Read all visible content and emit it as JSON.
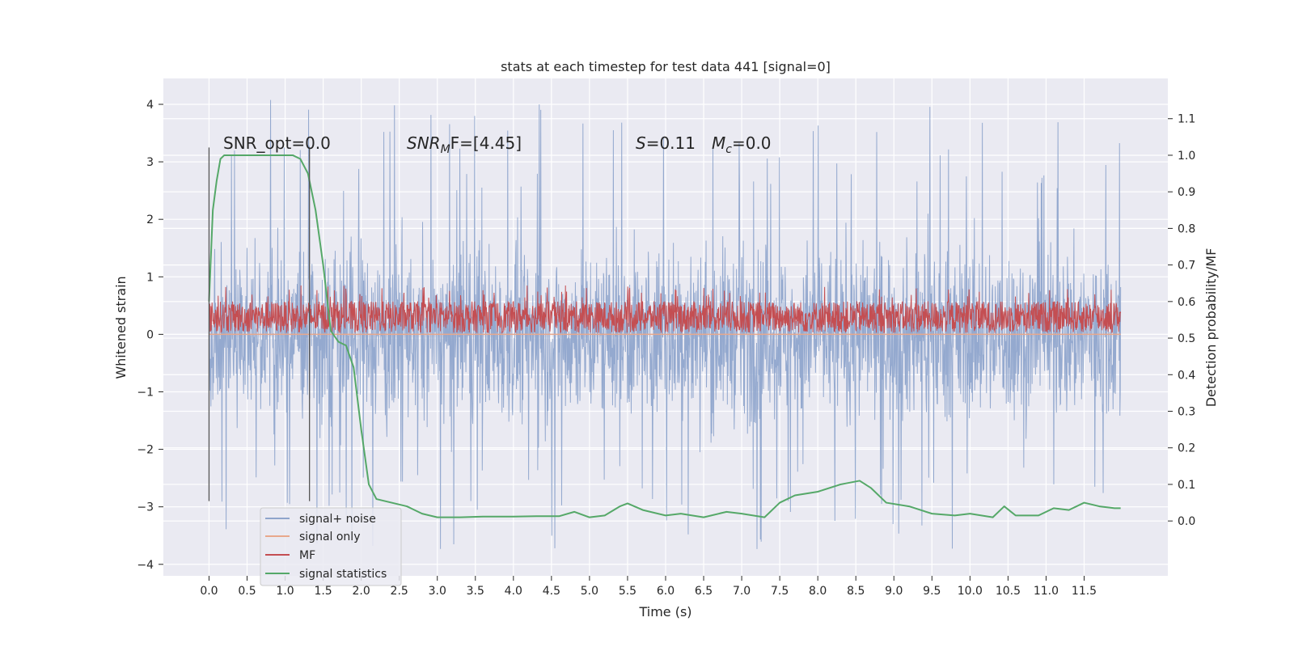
{
  "chart_data": {
    "type": "line",
    "title": "stats at each timestep for test data 441 [signal=0]",
    "xlabel": "Time (s)",
    "ylabel": "Whitened strain",
    "y2label": "Detection probability/MF",
    "xlim": [
      -0.6,
      12.6
    ],
    "ylim": [
      -4.2,
      4.45
    ],
    "y2lim": [
      -0.15,
      1.21
    ],
    "grid": true,
    "legend_position": "lower-left",
    "x_ticks": [
      "0.0",
      "0.5",
      "1.0",
      "1.5",
      "2.0",
      "2.5",
      "3.0",
      "3.5",
      "4.0",
      "4.5",
      "5.0",
      "5.5",
      "6.0",
      "6.5",
      "7.0",
      "7.5",
      "8.0",
      "8.5",
      "9.0",
      "9.5",
      "10.0",
      "10.5",
      "11.0",
      "11.5"
    ],
    "y_ticks": [
      "4",
      "3",
      "2",
      "1",
      "0",
      "−1",
      "−2",
      "−3",
      "−4"
    ],
    "y2_ticks": [
      "1.1",
      "1.0",
      "0.9",
      "0.8",
      "0.7",
      "0.6",
      "0.5",
      "0.4",
      "0.3",
      "0.2",
      "0.1",
      "0.0"
    ],
    "vertical_markers": [
      0.0,
      1.32
    ],
    "annotations": {
      "snr_opt": "SNR_opt=0.0",
      "snr_mf_sym": "SNR",
      "snr_mf_sub": "M",
      "snr_mf_rest": "F=[4.45]",
      "s_sym": "S",
      "s_rest": "=0.11",
      "mc_sym": "M",
      "mc_sub": "c",
      "mc_rest": "=0.0"
    },
    "series": [
      {
        "name": "signal+ noise",
        "color": "#8fa5cc",
        "approx_envelope": {
          "x_range": [
            0.0,
            11.98
          ],
          "lower": -2.0,
          "upper": 2.0,
          "peak_high": 4.1,
          "peak_low": -3.75
        }
      },
      {
        "name": "signal only",
        "color": "#e8a88c",
        "values_note": "0",
        "x": [
          0.0,
          11.98
        ],
        "y": [
          0.0,
          0.0
        ]
      },
      {
        "name": "MF",
        "color": "#c44e52",
        "approx_envelope": {
          "x_range": [
            0.0,
            11.98
          ],
          "lower": 0.0,
          "upper": 0.6,
          "peak_high": 0.85
        }
      },
      {
        "name": "signal statistics",
        "color": "#55a868",
        "axis": "right",
        "x": [
          0.0,
          0.05,
          0.1,
          0.15,
          0.2,
          0.3,
          0.5,
          0.8,
          1.0,
          1.1,
          1.2,
          1.3,
          1.4,
          1.5,
          1.6,
          1.7,
          1.8,
          1.9,
          2.0,
          2.1,
          2.2,
          2.4,
          2.6,
          2.8,
          3.0,
          3.3,
          3.6,
          4.0,
          4.3,
          4.6,
          4.8,
          5.0,
          5.2,
          5.4,
          5.5,
          5.7,
          6.0,
          6.2,
          6.5,
          6.8,
          7.0,
          7.3,
          7.5,
          7.7,
          8.0,
          8.3,
          8.55,
          8.7,
          8.9,
          9.2,
          9.5,
          9.8,
          10.0,
          10.3,
          10.45,
          10.6,
          10.9,
          11.1,
          11.3,
          11.5,
          11.7,
          11.9,
          11.98
        ],
        "y": [
          0.6,
          0.85,
          0.93,
          0.99,
          1.0,
          1.0,
          1.0,
          1.0,
          1.0,
          1.0,
          0.99,
          0.95,
          0.85,
          0.7,
          0.52,
          0.49,
          0.48,
          0.42,
          0.25,
          0.1,
          0.06,
          0.05,
          0.04,
          0.02,
          0.01,
          0.01,
          0.012,
          0.012,
          0.013,
          0.013,
          0.025,
          0.01,
          0.015,
          0.04,
          0.048,
          0.03,
          0.015,
          0.02,
          0.01,
          0.025,
          0.02,
          0.01,
          0.05,
          0.07,
          0.08,
          0.1,
          0.11,
          0.09,
          0.05,
          0.04,
          0.02,
          0.015,
          0.02,
          0.01,
          0.04,
          0.015,
          0.015,
          0.035,
          0.03,
          0.05,
          0.04,
          0.035,
          0.035
        ]
      }
    ]
  }
}
